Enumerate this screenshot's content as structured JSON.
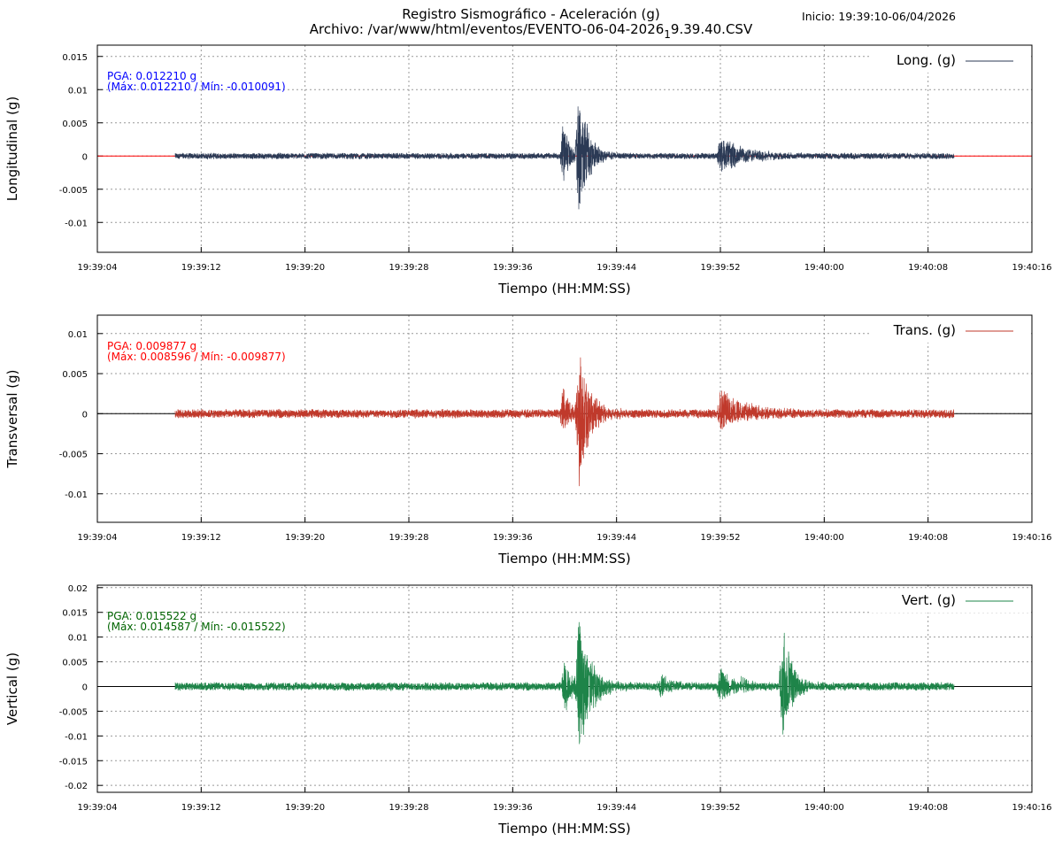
{
  "header": {
    "title": "Registro Sismográfico - Aceleración (g)",
    "file_prefix": "Archivo: /var/www/html/eventos/EVENTO-06-04-2026",
    "file_subscript": "1",
    "file_suffix": "9.39.40.CSV",
    "start": "Inicio: 19:39:10-06/04/2026"
  },
  "chart_data": [
    {
      "type": "line",
      "ylabel": "Longitudinal (g)",
      "xlabel": "Tiempo (HH:MM:SS)",
      "legend": "Long. (g)",
      "legend_position": "top-right",
      "color": "#2b3a55",
      "zero_line_color": "#ff0000",
      "annotation_color": "#0000ff",
      "pga": "PGA: 0.012210 g",
      "maxmin": "(Máx: 0.012210 / Mín: -0.010091)",
      "x_ticks": [
        "19:39:04",
        "19:39:12",
        "19:39:20",
        "19:39:28",
        "19:39:36",
        "19:39:44",
        "19:39:52",
        "19:40:00",
        "19:40:08",
        "19:40:16"
      ],
      "xlim_seconds": [
        0,
        72
      ],
      "data_range_seconds": [
        6,
        66
      ],
      "y_ticks": [
        0.015,
        0.01,
        0.005,
        0,
        -0.005,
        -0.01
      ],
      "y_tick_labels": [
        "0.015",
        "0.01",
        "0.005",
        "0",
        "-0.005",
        "-0.01"
      ],
      "ylim": [
        -0.0145,
        0.0167
      ],
      "grid": true,
      "noise_amplitude": 0.0005,
      "events": [
        {
          "t": 35.9,
          "max": 0.0055,
          "min": -0.0045,
          "decay": 0.5
        },
        {
          "t": 37.1,
          "max": 0.01221,
          "min": -0.010091,
          "decay": 0.7
        },
        {
          "t": 48.0,
          "max": 0.003,
          "min": -0.0028,
          "decay": 1.8
        }
      ]
    },
    {
      "type": "line",
      "ylabel": "Transversal (g)",
      "xlabel": "Tiempo (HH:MM:SS)",
      "legend": "Trans. (g)",
      "legend_position": "top-right",
      "color": "#c0392b",
      "zero_line_color": "#000000",
      "annotation_color": "#ff0000",
      "pga": "PGA: 0.009877 g",
      "maxmin": "(Máx: 0.008596 / Mín: -0.009877)",
      "x_ticks": [
        "19:39:04",
        "19:39:12",
        "19:39:20",
        "19:39:28",
        "19:39:36",
        "19:39:44",
        "19:39:52",
        "19:40:00",
        "19:40:08",
        "19:40:16"
      ],
      "xlim_seconds": [
        0,
        72
      ],
      "data_range_seconds": [
        6,
        66
      ],
      "y_ticks": [
        0.01,
        0.005,
        0,
        -0.005,
        -0.01
      ],
      "y_tick_labels": [
        "0.01",
        "0.005",
        "0",
        "-0.005",
        "-0.01"
      ],
      "ylim": [
        -0.01356,
        0.0123
      ],
      "grid": true,
      "noise_amplitude": 0.0006,
      "events": [
        {
          "t": 35.9,
          "max": 0.0035,
          "min": -0.0022,
          "decay": 0.5
        },
        {
          "t": 37.1,
          "max": 0.008596,
          "min": -0.009877,
          "decay": 0.8
        },
        {
          "t": 48.0,
          "max": 0.0035,
          "min": -0.002,
          "decay": 2.0
        }
      ]
    },
    {
      "type": "line",
      "ylabel": "Vertical (g)",
      "xlabel": "Tiempo (HH:MM:SS)",
      "legend": "Vert. (g)",
      "legend_position": "top-right",
      "color": "#1e8449",
      "zero_line_color": "#000000",
      "annotation_color": "#006400",
      "pga": "PGA: 0.015522 g",
      "maxmin": "(Máx: 0.014587 / Mín: -0.015522)",
      "x_ticks": [
        "19:39:04",
        "19:39:12",
        "19:39:20",
        "19:39:28",
        "19:39:36",
        "19:39:44",
        "19:39:52",
        "19:40:00",
        "19:40:08",
        "19:40:16"
      ],
      "xlim_seconds": [
        0,
        72
      ],
      "data_range_seconds": [
        6,
        66
      ],
      "y_ticks": [
        0.02,
        0.015,
        0.01,
        0.005,
        0,
        -0.005,
        -0.01,
        -0.015,
        -0.02
      ],
      "y_tick_labels": [
        "0.02",
        "0.015",
        "0.01",
        "0.005",
        "0",
        "-0.005",
        "-0.01",
        "-0.015",
        "-0.02"
      ],
      "ylim": [
        -0.0214,
        0.0205
      ],
      "grid": true,
      "noise_amplitude": 0.0009,
      "events": [
        {
          "t": 36.0,
          "max": 0.006,
          "min": -0.005,
          "decay": 0.7
        },
        {
          "t": 37.1,
          "max": 0.014587,
          "min": -0.015522,
          "decay": 0.9
        },
        {
          "t": 43.4,
          "max": 0.0028,
          "min": -0.002,
          "decay": 0.8
        },
        {
          "t": 48.0,
          "max": 0.0045,
          "min": -0.004,
          "decay": 0.8
        },
        {
          "t": 49.6,
          "max": 0.002,
          "min": -0.0015,
          "decay": 0.6
        },
        {
          "t": 52.8,
          "max": 0.014,
          "min": -0.011,
          "decay": 0.7
        }
      ]
    }
  ]
}
